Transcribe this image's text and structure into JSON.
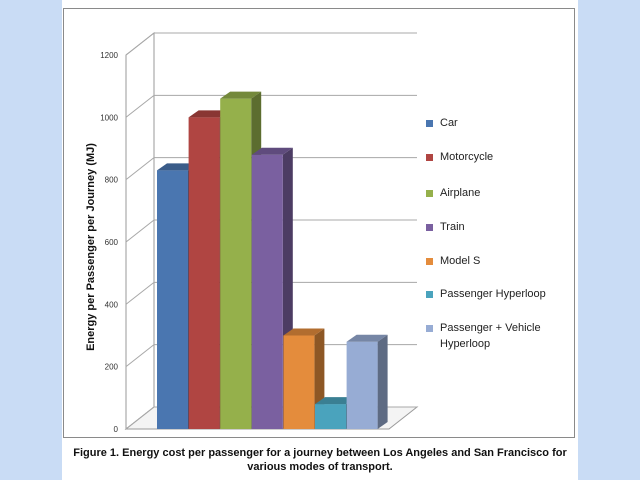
{
  "caption": "Figure 1. Energy cost per passenger for a journey between Los Angeles and San Francisco for various modes of transport.",
  "chart_data": {
    "type": "bar",
    "title": "",
    "ylabel": "Energy per Passenger per Journey (MJ)",
    "xlabel": "",
    "ylim": [
      0,
      1200
    ],
    "yticks": [
      0,
      200,
      400,
      600,
      800,
      1000,
      1200
    ],
    "grid": true,
    "legend_position": "right",
    "series": [
      {
        "name": "Car",
        "value": 830,
        "color": "#4a76b0"
      },
      {
        "name": "Motorcycle",
        "value": 1000,
        "color": "#b04542"
      },
      {
        "name": "Airplane",
        "value": 1060,
        "color": "#95b04b"
      },
      {
        "name": "Train",
        "value": 880,
        "color": "#7a60a0"
      },
      {
        "name": "Model S",
        "value": 300,
        "color": "#e48c3c"
      },
      {
        "name": "Passenger Hyperloop",
        "value": 80,
        "color": "#4aa3bd"
      },
      {
        "name": "Passenger + Vehicle Hyperloop",
        "value": 280,
        "color": "#97acd4"
      }
    ]
  }
}
